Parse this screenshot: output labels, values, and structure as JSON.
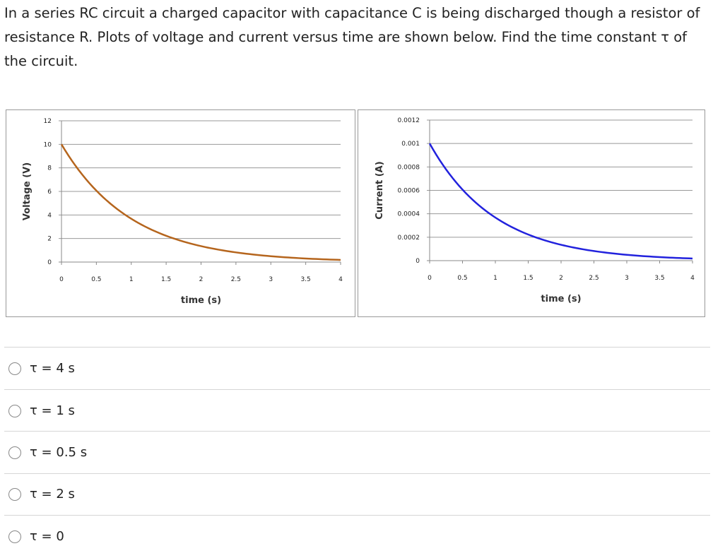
{
  "question": "In a series RC circuit a charged capacitor with capacitance C is being discharged though a resistor of resistance R.  Plots of voltage and current versus time are shown below.  Find the time constant τ of the circuit.",
  "chart_data": [
    {
      "type": "line",
      "title": "",
      "xlabel": "time (s)",
      "ylabel": "Voltage (V)",
      "xlim": [
        0,
        4
      ],
      "ylim": [
        0,
        12
      ],
      "xticks": [
        "0",
        "0.5",
        "1",
        "1.5",
        "2",
        "2.5",
        "3",
        "3.5",
        "4"
      ],
      "yticks": [
        "0",
        "2",
        "4",
        "6",
        "8",
        "10",
        "12"
      ],
      "grid": "horizontal",
      "color": "#b5651d",
      "series": [
        {
          "name": "Voltage",
          "x": [
            0,
            0.25,
            0.5,
            0.75,
            1,
            1.25,
            1.5,
            1.75,
            2,
            2.25,
            2.5,
            2.75,
            3,
            3.25,
            3.5,
            3.75,
            4
          ],
          "y": [
            10,
            7.79,
            6.07,
            4.72,
            3.68,
            2.87,
            2.23,
            1.74,
            1.35,
            1.05,
            0.82,
            0.64,
            0.5,
            0.39,
            0.3,
            0.24,
            0.18
          ]
        }
      ]
    },
    {
      "type": "line",
      "title": "",
      "xlabel": "time (s)",
      "ylabel": "Current (A)",
      "xlim": [
        0,
        4
      ],
      "ylim": [
        0,
        0.0012
      ],
      "xticks": [
        "0",
        "0.5",
        "1",
        "1.5",
        "2",
        "2.5",
        "3",
        "3.5",
        "4"
      ],
      "yticks": [
        "0",
        "0.0002",
        "0.0004",
        "0.0006",
        "0.0008",
        "0.001",
        "0.0012"
      ],
      "grid": "horizontal",
      "color": "#2222dd",
      "series": [
        {
          "name": "Current",
          "x": [
            0,
            0.25,
            0.5,
            0.75,
            1,
            1.25,
            1.5,
            1.75,
            2,
            2.25,
            2.5,
            2.75,
            3,
            3.25,
            3.5,
            3.75,
            4
          ],
          "y": [
            0.001,
            0.000779,
            0.000607,
            0.000472,
            0.000368,
            0.000287,
            0.000223,
            0.000174,
            0.000135,
            0.000105,
            8.2e-05,
            6.4e-05,
            5e-05,
            3.9e-05,
            3e-05,
            2.4e-05,
            1.8e-05
          ]
        }
      ]
    }
  ],
  "options": [
    "τ = 4 s",
    "τ = 1 s",
    "τ = 0.5 s",
    "τ = 2 s",
    "τ = 0"
  ]
}
